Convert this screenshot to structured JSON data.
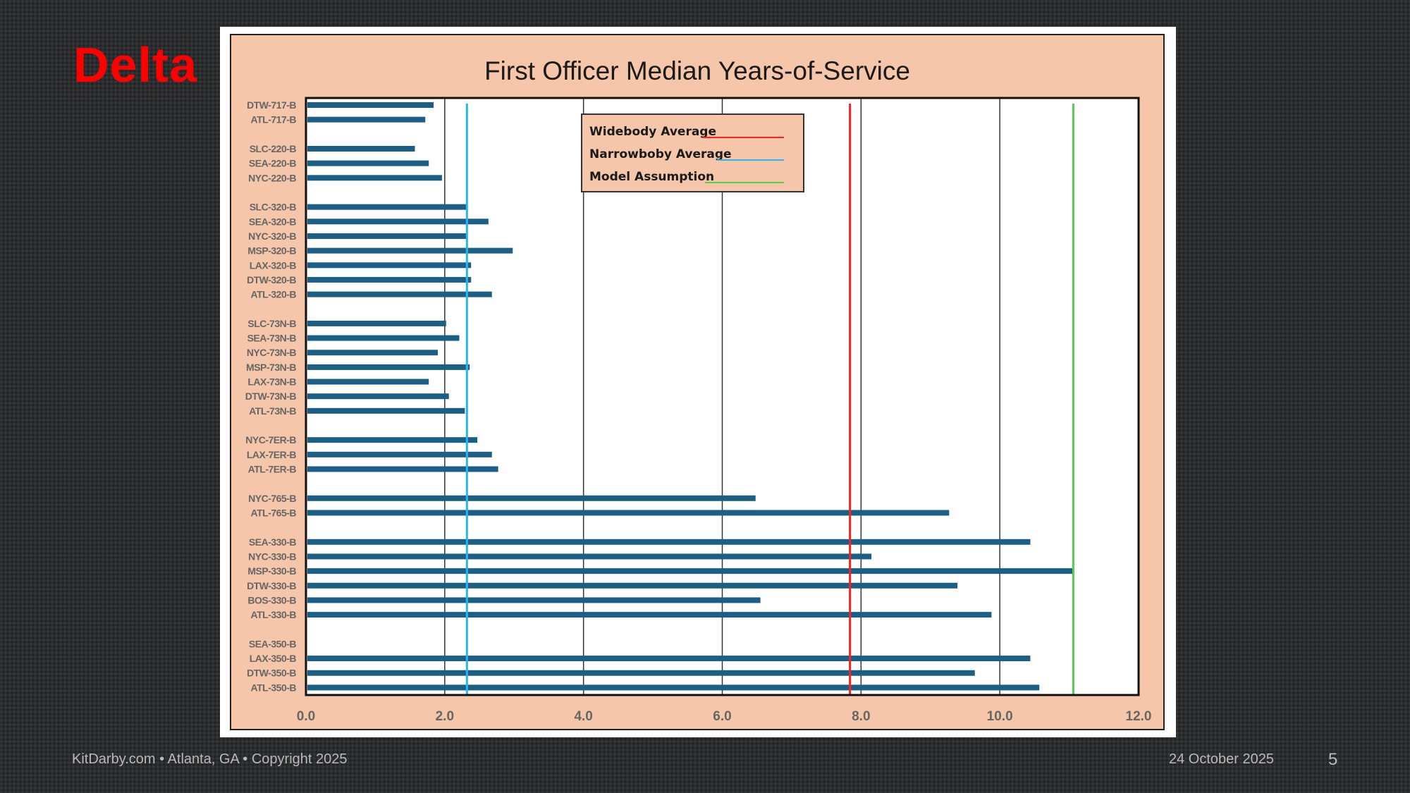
{
  "logo": "Delta",
  "footer": {
    "left": "KitDarby.com • Atlanta, GA • Copyright 2025",
    "date": "24 October 2025",
    "page": "5"
  },
  "chart_data": {
    "type": "bar",
    "orientation": "horizontal",
    "title": "First Officer Median Years-of-Service",
    "xlabel": "",
    "ylabel": "",
    "xlim": [
      0,
      12
    ],
    "xticks": [
      "0.0",
      "2.0",
      "4.0",
      "6.0",
      "8.0",
      "10.0",
      "12.0"
    ],
    "grid": true,
    "groups": [
      {
        "categories": [
          "DTW-717-B",
          "ATL-717-B"
        ],
        "values": [
          1.84,
          1.72
        ]
      },
      {
        "categories": [
          "SLC-220-B",
          "SEA-220-B",
          "NYC-220-B"
        ],
        "values": [
          1.57,
          1.77,
          1.96
        ]
      },
      {
        "categories": [
          "SLC-320-B",
          "SEA-320-B",
          "NYC-320-B",
          "MSP-320-B",
          "LAX-320-B",
          "DTW-320-B",
          "ATL-320-B"
        ],
        "values": [
          2.32,
          2.63,
          2.32,
          2.98,
          2.38,
          2.38,
          2.68
        ]
      },
      {
        "categories": [
          "SLC-73N-B",
          "SEA-73N-B",
          "NYC-73N-B",
          "MSP-73N-B",
          "LAX-73N-B",
          "DTW-73N-B",
          "ATL-73N-B"
        ],
        "values": [
          2.02,
          2.21,
          1.9,
          2.36,
          1.77,
          2.06,
          2.29
        ]
      },
      {
        "categories": [
          "NYC-7ER-B",
          "LAX-7ER-B",
          "ATL-7ER-B"
        ],
        "values": [
          2.47,
          2.68,
          2.77
        ]
      },
      {
        "categories": [
          "NYC-765-B",
          "ATL-765-B"
        ],
        "values": [
          6.48,
          9.27
        ]
      },
      {
        "categories": [
          "SEA-330-B",
          "NYC-330-B",
          "MSP-330-B",
          "DTW-330-B",
          "BOS-330-B",
          "ATL-330-B"
        ],
        "values": [
          10.44,
          8.15,
          11.07,
          9.39,
          6.55,
          9.88
        ]
      },
      {
        "categories": [
          "SEA-350-B",
          "LAX-350-B",
          "DTW-350-B",
          "ATL-350-B"
        ],
        "values": [
          null,
          10.44,
          9.64,
          10.57
        ]
      }
    ],
    "bar_color": "#1b5f86",
    "reference_lines": [
      {
        "name": "Widebody Average",
        "value": 7.84,
        "color": "#ff2020"
      },
      {
        "name": "Narrowboby Average",
        "value": 2.32,
        "color": "#29b6f0"
      },
      {
        "name": "Model Assumption",
        "value": 11.06,
        "color": "#57cf4f"
      }
    ],
    "legend_position": "top-center"
  }
}
